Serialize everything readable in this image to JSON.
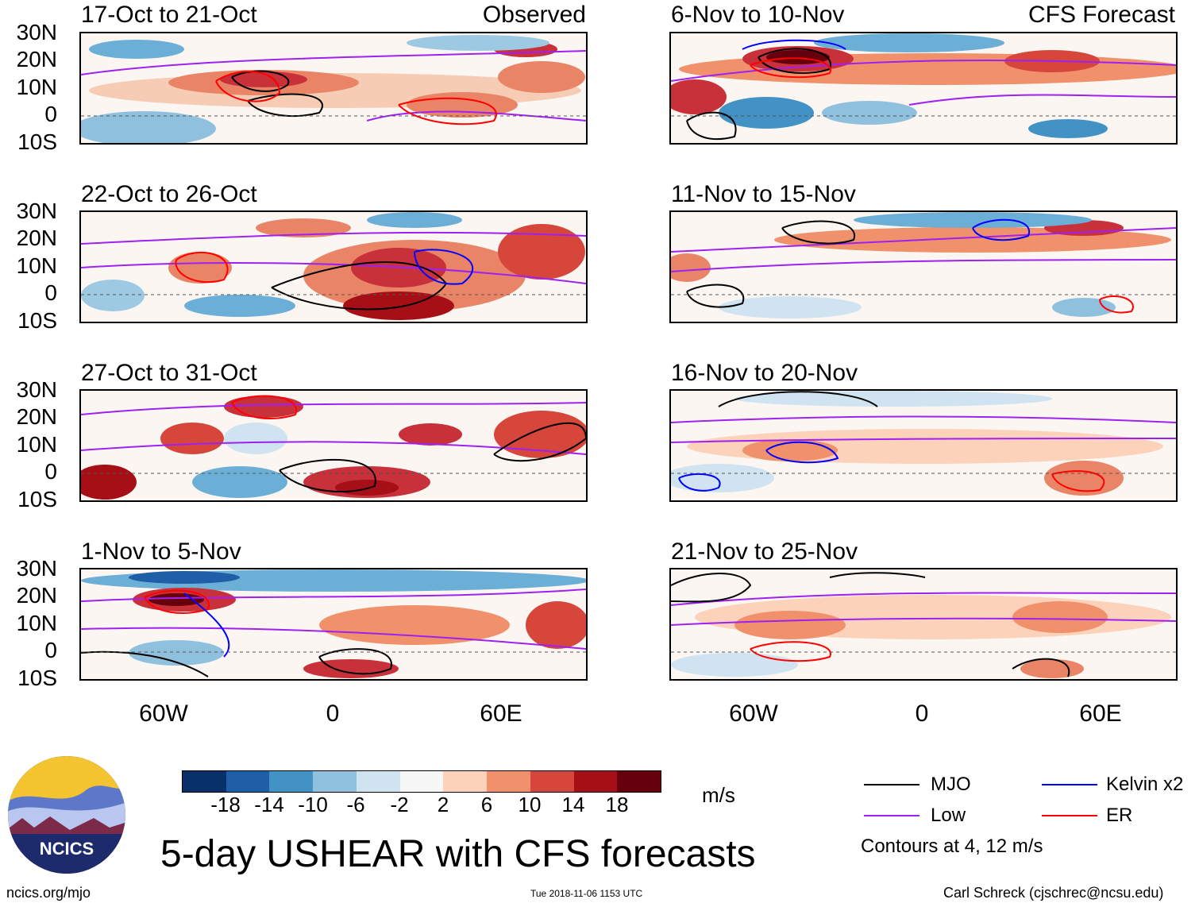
{
  "title": "5-day USHEAR with CFS forecasts",
  "headers": {
    "left": "Observed",
    "right": "CFS Forecast"
  },
  "panels": {
    "left": [
      {
        "title": "17-Oct to 21-Oct"
      },
      {
        "title": "22-Oct to 26-Oct"
      },
      {
        "title": "27-Oct to 31-Oct"
      },
      {
        "title": "1-Nov to 5-Nov"
      }
    ],
    "right": [
      {
        "title": "6-Nov to 10-Nov"
      },
      {
        "title": "11-Nov to 15-Nov"
      },
      {
        "title": "16-Nov to 20-Nov"
      },
      {
        "title": "21-Nov to 25-Nov"
      }
    ]
  },
  "lat_labels": [
    "30N",
    "20N",
    "10N",
    "0",
    "10S"
  ],
  "lon_labels": [
    "60W",
    "0",
    "60E"
  ],
  "colorbar": {
    "unit": "m/s",
    "ticks": [
      "-18",
      "-14",
      "-10",
      "-6",
      "-2",
      "2",
      "6",
      "10",
      "14",
      "18"
    ],
    "colors": [
      "#08306b",
      "#1f5fa8",
      "#4292c6",
      "#8fc1de",
      "#cfe3f0",
      "#f7f7f7",
      "#fdd2bb",
      "#f0916b",
      "#d6463b",
      "#a50f15",
      "#67000d"
    ]
  },
  "legend": {
    "items": [
      {
        "label": "MJO",
        "color": "#000000"
      },
      {
        "label": "Kelvin x2",
        "color": "#0000ff"
      },
      {
        "label": "Low",
        "color": "#a020f0"
      },
      {
        "label": "ER",
        "color": "#ff0000"
      }
    ],
    "note": "Contours at 4, 12 m/s"
  },
  "logo": {
    "text": "NCICS"
  },
  "footer": {
    "url": "ncics.org/mjo",
    "timestamp": "Tue 2018-11-06 1153 UTC",
    "credit": "Carl Schreck (cjschrec@ncsu.edu)"
  }
}
